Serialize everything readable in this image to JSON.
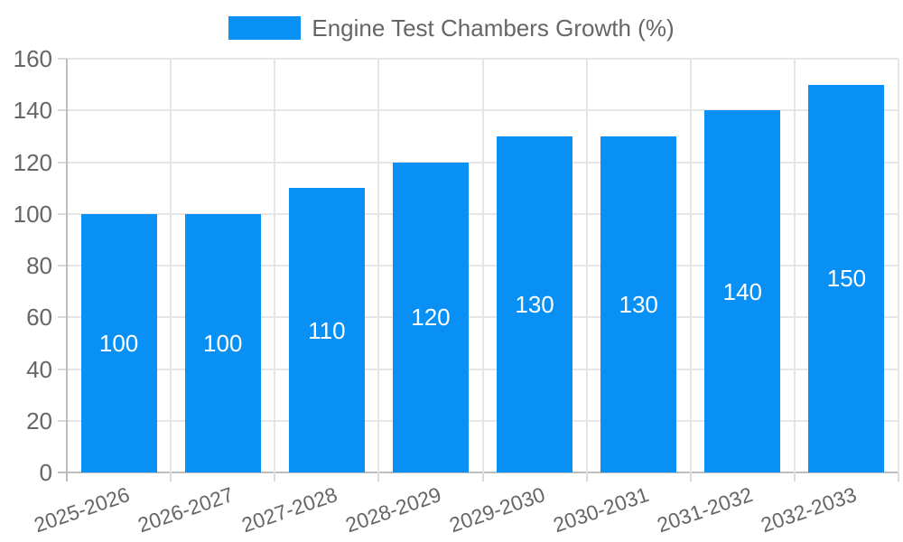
{
  "chart_data": {
    "type": "bar",
    "title": "",
    "legend": {
      "label": "Engine Test Chambers Growth (%)",
      "position": "top"
    },
    "categories": [
      "2025-2026",
      "2026-2027",
      "2027-2028",
      "2028-2029",
      "2029-2030",
      "2030-2031",
      "2031-2032",
      "2032-2033"
    ],
    "series": [
      {
        "name": "Engine Test Chambers Growth (%)",
        "values": [
          100,
          100,
          110,
          120,
          130,
          130,
          140,
          150
        ]
      }
    ],
    "bar_value_labels": [
      "100",
      "100",
      "110",
      "120",
      "130",
      "130",
      "140",
      "150"
    ],
    "ylim": [
      0,
      160
    ],
    "ytick_step": 20,
    "yticks": [
      0,
      20,
      40,
      60,
      80,
      100,
      120,
      140,
      160
    ],
    "grid": "both",
    "xlabel": "",
    "ylabel": "",
    "colors": {
      "bar": "#0990F5",
      "bar_label": "#FFFFFF",
      "axis_text": "#666666",
      "grid_line": "#E6E6E6",
      "tick_mark": "#DADADA",
      "axis_line": "#BDBDBD",
      "background": "#FFFFFF"
    }
  }
}
